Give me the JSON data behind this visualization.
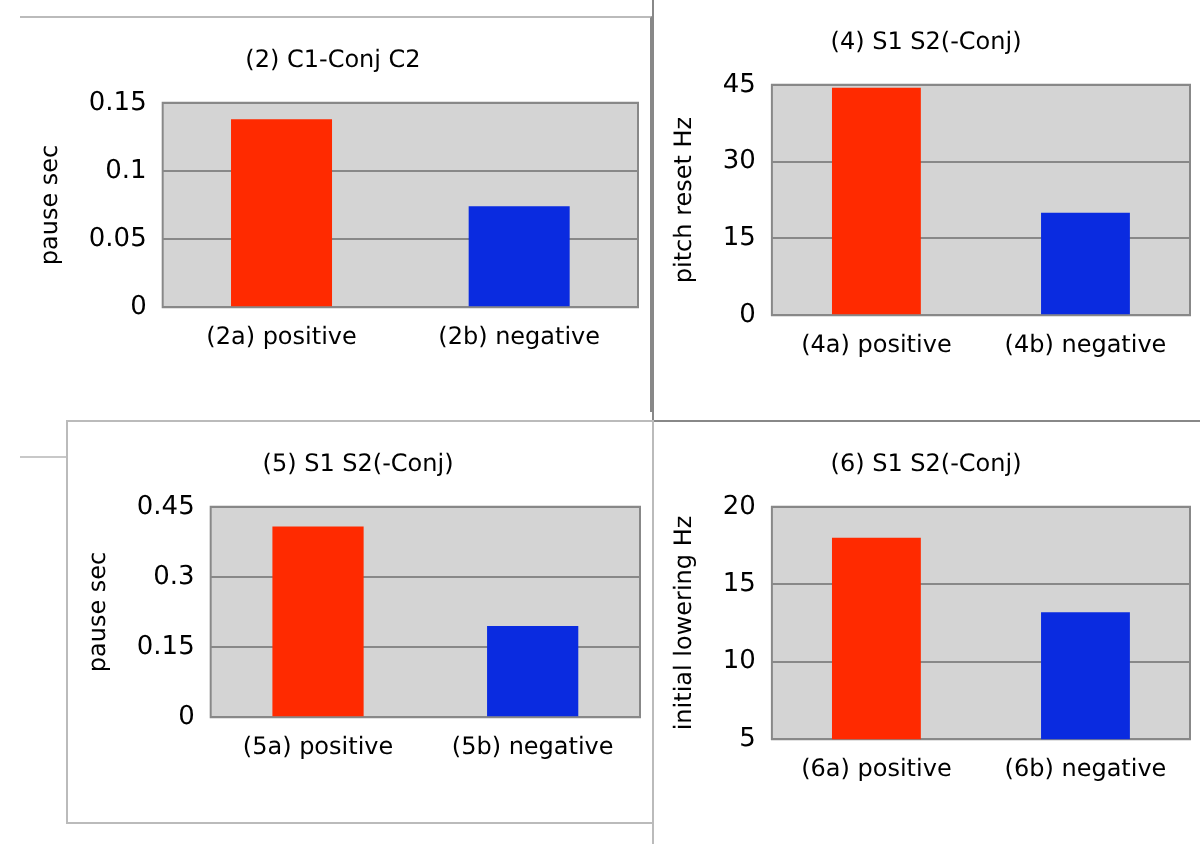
{
  "chart_data": [
    {
      "type": "bar",
      "title": "(2) C1-Conj C2",
      "ylabel": "pause sec",
      "categories": [
        "(2a) positive",
        "(2b) negative"
      ],
      "values": [
        0.138,
        0.074
      ],
      "colors": [
        "#ff2a00",
        "#0a2be0"
      ],
      "ylim": [
        0,
        0.15
      ],
      "yticks": [
        0,
        0.05,
        0.1,
        0.15
      ],
      "grid": "y",
      "legend": false
    },
    {
      "type": "bar",
      "title": "(4) S1 S2(-Conj)",
      "ylabel": "pitch reset Hz",
      "categories": [
        "(4a) positive",
        "(4b) negative"
      ],
      "values": [
        44.4,
        20
      ],
      "colors": [
        "#ff2a00",
        "#0a2be0"
      ],
      "ylim": [
        0,
        45
      ],
      "yticks": [
        0,
        15,
        30,
        45
      ],
      "grid": "y",
      "legend": false
    },
    {
      "type": "bar",
      "title": "(5) S1 S2(-Conj)",
      "ylabel": "pause sec",
      "categories": [
        "(5a) positive",
        "(5b) negative"
      ],
      "values": [
        0.408,
        0.195
      ],
      "colors": [
        "#ff2a00",
        "#0a2be0"
      ],
      "ylim": [
        0,
        0.45
      ],
      "yticks": [
        0,
        0.15,
        0.3,
        0.45
      ],
      "grid": "y",
      "legend": false
    },
    {
      "type": "bar",
      "title": "(6) S1 S2(-Conj)",
      "ylabel": "initial lowering Hz",
      "categories": [
        "(6a) positive",
        "(6b) negative"
      ],
      "values": [
        18,
        13.2
      ],
      "colors": [
        "#ff2a00",
        "#0a2be0"
      ],
      "ylim": [
        5,
        20
      ],
      "yticks": [
        5,
        10,
        15,
        20
      ],
      "grid": "y",
      "legend": false
    }
  ]
}
